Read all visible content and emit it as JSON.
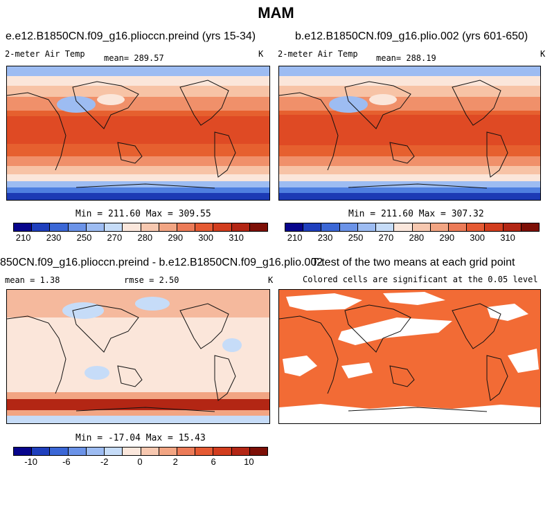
{
  "figure": {
    "season": "MAM"
  },
  "panels": {
    "p1": {
      "title": "e.e12.B1850CN.f09_g16.plioccn.preind (yrs 15-34)",
      "variable": "2-meter Air Temp",
      "mean_label": "mean= 289.57",
      "units": "K",
      "minmax": "Min = 211.60 Max = 309.55"
    },
    "p2": {
      "title": "b.e12.B1850CN.f09_g16.plio.002 (yrs 601-650)",
      "variable": "2-meter Air Temp",
      "mean_label": "mean= 288.19",
      "units": "K",
      "minmax": "Min = 211.60 Max = 307.32"
    },
    "p3": {
      "title": "850CN.f09_g16.plioccn.preind - b.e12.B1850CN.f09_g16.plio.002",
      "mean_label": "mean =     1.38",
      "rmse_label": "rmse =    2.50",
      "units": "K",
      "minmax": "Min = -17.04 Max =  15.43"
    },
    "p4": {
      "title": "T-test of the two means at each grid point",
      "subtitle": "Colored cells are significant at the 0.05 level"
    }
  },
  "colorbars": {
    "temp": {
      "colors": [
        "#08058c",
        "#1f3fbd",
        "#3b67d6",
        "#6b93e8",
        "#9dbcf2",
        "#c6dcf8",
        "#fbe7dc",
        "#f7c8b0",
        "#f2a583",
        "#ec7b58",
        "#e55a33",
        "#d23d1e",
        "#b32614",
        "#7d0f06"
      ],
      "labels": [
        "210",
        "230",
        "250",
        "270",
        "280",
        "290",
        "300",
        "310"
      ],
      "label_positions": [
        0.04,
        0.16,
        0.28,
        0.4,
        0.52,
        0.64,
        0.76,
        0.88
      ]
    },
    "diff": {
      "colors": [
        "#08058c",
        "#1f3fbd",
        "#3b67d6",
        "#6b93e8",
        "#9dbcf2",
        "#c6dcf8",
        "#fbe7dc",
        "#f7c8b0",
        "#f2a583",
        "#ec7b58",
        "#e55a33",
        "#d23d1e",
        "#b32614",
        "#7d0f06"
      ],
      "labels": [
        "-10",
        "-6",
        "-2",
        "0",
        "2",
        "6",
        "10"
      ],
      "label_positions": [
        0.07,
        0.21,
        0.36,
        0.5,
        0.64,
        0.79,
        0.93
      ]
    }
  },
  "map_colors": {
    "equator": "#df4a24",
    "tropics": "#e6602f",
    "subtropics": "#f0906a",
    "midlat": "#f7c3a6",
    "cool": "#fbe6da",
    "polar_light": "#9dbcf2",
    "polar_mid": "#4f7fe0",
    "polar_deep": "#1c3ab5",
    "diff_bg": "#fbe6da",
    "diff_warm": "#f2a583",
    "diff_cool": "#c6dcf8",
    "diff_south": "#b32614",
    "ttest_fill": "#f26b35",
    "coast": "#111111"
  }
}
